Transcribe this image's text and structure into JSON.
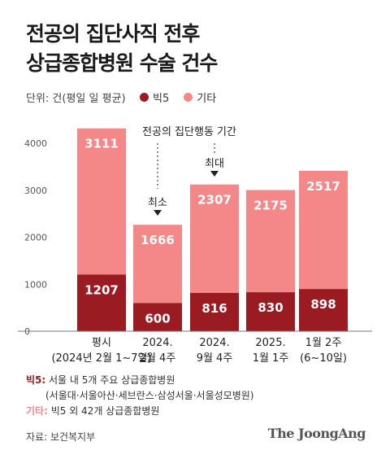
{
  "header": {
    "title_line1": "전공의 집단사직 전후",
    "title_line2": "상급종합병원 수술 건수",
    "unit": "단위: 건(평일 일 평균)"
  },
  "legend": {
    "big5": "빅5",
    "other": "기타"
  },
  "colors": {
    "big5": "#9b1b22",
    "other": "#f48787",
    "axis": "#888888",
    "grid": "#dddddd"
  },
  "annotations": {
    "period": "전공의 집단행동 기간",
    "min": "최소",
    "max": "최대"
  },
  "chart_data": {
    "type": "bar",
    "stacked": true,
    "categories": [
      "평시",
      "2024. 2월 4주",
      "2024. 9월 4주",
      "2025. 1월 1주",
      "1월 2주"
    ],
    "category_lines": [
      [
        "평시",
        "(2024년 2월 1~7일)"
      ],
      [
        "2024.",
        "2월 4주"
      ],
      [
        "2024.",
        "9월 4주"
      ],
      [
        "2025.",
        "1월 1주"
      ],
      [
        "1월 2주",
        "(6~10일)"
      ]
    ],
    "series": [
      {
        "name": "빅5",
        "values": [
          1207,
          600,
          816,
          830,
          898
        ]
      },
      {
        "name": "기타",
        "values": [
          3111,
          1666,
          2307,
          2175,
          2517
        ]
      }
    ],
    "y_ticks": [
      0,
      1000,
      2000,
      3000,
      4000
    ],
    "ylim": [
      0,
      4400
    ],
    "grid": false
  },
  "notes": {
    "big5_label": "빅5:",
    "big5_text": " 서울 내 5개 주요 상급종합병원",
    "big5_detail": "(서울대·서울아산·세브란스·삼성서울·서울성모병원)",
    "other_label": "기타:",
    "other_text": " 빅5 외 42개 상급종합병원"
  },
  "source": "자료: 보건복지부",
  "brand": "The JoongAng"
}
